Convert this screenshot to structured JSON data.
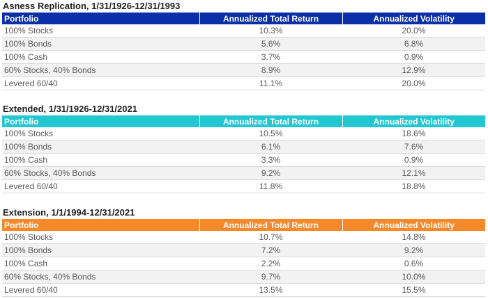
{
  "headers": {
    "portfolio": "Portfolio",
    "return": "Annualized Total Return",
    "volatility": "Annualized Volatility"
  },
  "header_colors": {
    "asness": "#0a2fa6",
    "extended": "#22c7d1",
    "extension": "#f7892b"
  },
  "sections": [
    {
      "title": "Asness Replication, 1/31/1926-12/31/1993",
      "rows": [
        {
          "portfolio": "100% Stocks",
          "return": "10.3%",
          "volatility": "20.0%"
        },
        {
          "portfolio": "100% Bonds",
          "return": "5.6%",
          "volatility": "6.8%"
        },
        {
          "portfolio": "100% Cash",
          "return": "3.7%",
          "volatility": "0.9%"
        },
        {
          "portfolio": "60% Stocks, 40% Bonds",
          "return": "8.9%",
          "volatility": "12.9%"
        },
        {
          "portfolio": "Levered 60/40",
          "return": "11.1%",
          "volatility": "20.0%"
        }
      ]
    },
    {
      "title": "Extended, 1/31/1926-12/31/2021",
      "rows": [
        {
          "portfolio": "100% Stocks",
          "return": "10.5%",
          "volatility": "18.6%"
        },
        {
          "portfolio": "100% Bonds",
          "return": "6.1%",
          "volatility": "7.6%"
        },
        {
          "portfolio": "100% Cash",
          "return": "3.3%",
          "volatility": "0.9%"
        },
        {
          "portfolio": "60% Stocks, 40% Bonds",
          "return": "9.2%",
          "volatility": "12.1%"
        },
        {
          "portfolio": "Levered 60/40",
          "return": "11.8%",
          "volatility": "18.8%"
        }
      ]
    },
    {
      "title": "Extension, 1/1/1994-12/31/2021",
      "rows": [
        {
          "portfolio": "100% Stocks",
          "return": "10.7%",
          "volatility": "14.8%"
        },
        {
          "portfolio": "100% Bonds",
          "return": "7.2%",
          "volatility": "9.2%"
        },
        {
          "portfolio": "100% Cash",
          "return": "2.2%",
          "volatility": "0.6%"
        },
        {
          "portfolio": "60% Stocks, 40% Bonds",
          "return": "9.7%",
          "volatility": "10.0%"
        },
        {
          "portfolio": "Levered 60/40",
          "return": "13.5%",
          "volatility": "15.5%"
        }
      ]
    }
  ]
}
